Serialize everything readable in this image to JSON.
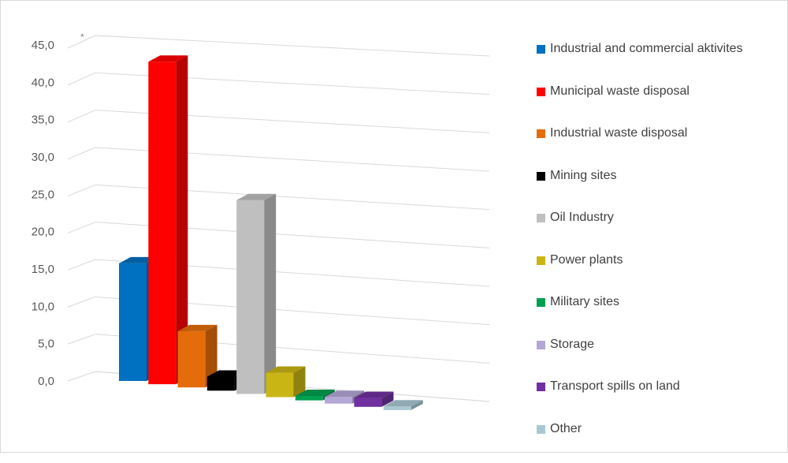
{
  "chart_data": {
    "type": "bar",
    "title": "",
    "xlabel": "",
    "ylabel": "",
    "ylim": [
      0,
      45
    ],
    "y_ticks": [
      "0,0",
      "5,0",
      "10,0",
      "15,0",
      "20,0",
      "25,0",
      "30,0",
      "35,0",
      "40,0",
      "45,0"
    ],
    "grid": true,
    "legend_position": "right",
    "corner_mark": "*",
    "categories": [
      "Industrial and commercial aktivites",
      "Municipal waste disposal",
      "Industrial waste disposal",
      "Mining sites",
      "Oil Industry",
      "Power plants",
      "Military sites",
      "Storage",
      "Transport spills on land",
      "Other"
    ],
    "values": [
      15.9,
      43.6,
      7.6,
      1.9,
      26.2,
      3.3,
      0.6,
      0.9,
      1.2,
      0.5
    ],
    "colors": [
      "#0070c0",
      "#ff0000",
      "#e46c0a",
      "#000000",
      "#bfbfbf",
      "#c9b514",
      "#00a050",
      "#b4a7d6",
      "#7030a0",
      "#a9c8d2"
    ]
  }
}
